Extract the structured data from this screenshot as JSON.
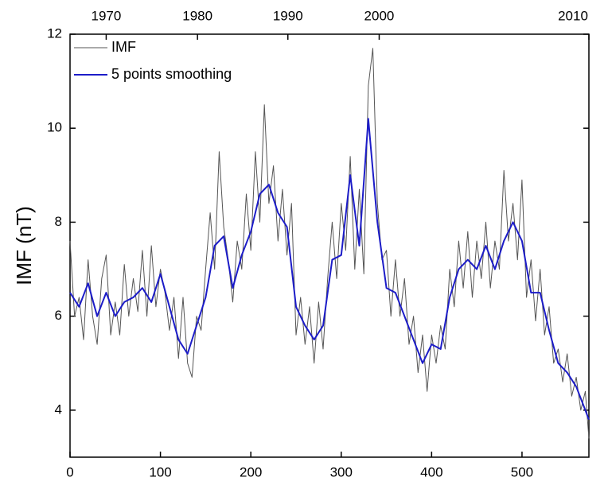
{
  "chart_data": {
    "type": "line",
    "y_label": "IMF (nT)",
    "xlim": [
      0,
      574
    ],
    "ylim": [
      3,
      12
    ],
    "xticks": [
      0,
      100,
      200,
      300,
      400,
      500
    ],
    "yticks": [
      4,
      6,
      8,
      10,
      12
    ],
    "x2ticks": [
      {
        "value": 40,
        "label": "1970"
      },
      {
        "value": 141,
        "label": "1980"
      },
      {
        "value": 241,
        "label": "1990"
      },
      {
        "value": 342,
        "label": "2000"
      },
      {
        "value": 574,
        "label": "2010"
      }
    ],
    "legend": "upper left",
    "series": [
      {
        "name": "IMF",
        "color": "#555555",
        "x": [
          0,
          5,
          10,
          15,
          20,
          25,
          30,
          35,
          40,
          45,
          50,
          55,
          60,
          65,
          70,
          75,
          80,
          85,
          90,
          95,
          100,
          105,
          110,
          115,
          120,
          125,
          130,
          135,
          140,
          145,
          150,
          155,
          160,
          165,
          170,
          175,
          180,
          185,
          190,
          195,
          200,
          205,
          210,
          215,
          220,
          225,
          230,
          235,
          240,
          245,
          250,
          255,
          260,
          265,
          270,
          275,
          280,
          285,
          290,
          295,
          300,
          305,
          310,
          315,
          320,
          325,
          330,
          335,
          340,
          345,
          350,
          355,
          360,
          365,
          370,
          375,
          380,
          385,
          390,
          395,
          400,
          405,
          410,
          415,
          420,
          425,
          430,
          435,
          440,
          445,
          450,
          455,
          460,
          465,
          470,
          475,
          480,
          485,
          490,
          495,
          500,
          505,
          510,
          515,
          520,
          525,
          530,
          535,
          540,
          545,
          550,
          555,
          560,
          565,
          570,
          574
        ],
        "values": [
          7.6,
          6.0,
          6.4,
          5.5,
          7.2,
          6.0,
          5.4,
          6.8,
          7.3,
          5.6,
          6.3,
          5.6,
          7.1,
          6.0,
          6.8,
          6.1,
          7.4,
          6.0,
          7.5,
          6.2,
          7.0,
          6.5,
          5.7,
          6.4,
          5.1,
          6.4,
          5.0,
          4.7,
          6.0,
          5.7,
          7.0,
          8.2,
          7.0,
          9.5,
          7.9,
          7.2,
          6.3,
          7.6,
          7.0,
          8.6,
          7.4,
          9.5,
          8.0,
          10.5,
          8.4,
          9.2,
          7.6,
          8.7,
          7.3,
          8.4,
          5.6,
          6.4,
          5.4,
          6.2,
          5.0,
          6.3,
          5.3,
          6.8,
          8.0,
          6.8,
          8.4,
          7.4,
          9.4,
          7.0,
          8.7,
          6.9,
          10.9,
          11.7,
          8.4,
          7.2,
          7.4,
          6.0,
          7.2,
          6.0,
          6.8,
          5.4,
          6.0,
          4.8,
          5.6,
          4.4,
          5.6,
          5.0,
          5.8,
          5.3,
          7.0,
          6.2,
          7.6,
          6.6,
          7.8,
          6.4,
          7.6,
          6.8,
          8.0,
          6.6,
          7.6,
          7.0,
          9.1,
          7.6,
          8.4,
          7.2,
          8.9,
          6.4,
          7.2,
          5.9,
          7.0,
          5.6,
          6.2,
          5.0,
          5.3,
          4.6,
          5.2,
          4.3,
          4.7,
          4.0,
          4.4,
          3.4
        ]
      },
      {
        "name": "5 points smoothing",
        "color": "#1c1cc8",
        "x": [
          0,
          10,
          20,
          30,
          40,
          50,
          60,
          70,
          80,
          90,
          100,
          110,
          120,
          130,
          140,
          150,
          160,
          170,
          180,
          190,
          200,
          210,
          220,
          230,
          240,
          250,
          260,
          270,
          280,
          290,
          300,
          310,
          320,
          330,
          340,
          350,
          360,
          370,
          380,
          390,
          400,
          410,
          420,
          430,
          440,
          450,
          460,
          470,
          480,
          490,
          500,
          510,
          520,
          530,
          540,
          550,
          560,
          570,
          574
        ],
        "values": [
          6.5,
          6.2,
          6.7,
          6.0,
          6.5,
          6.0,
          6.3,
          6.4,
          6.6,
          6.3,
          6.9,
          6.2,
          5.5,
          5.2,
          5.8,
          6.4,
          7.5,
          7.7,
          6.6,
          7.3,
          7.8,
          8.6,
          8.8,
          8.2,
          7.9,
          6.2,
          5.8,
          5.5,
          5.8,
          7.2,
          7.3,
          9.0,
          7.5,
          10.2,
          8.0,
          6.6,
          6.5,
          6.0,
          5.5,
          5.0,
          5.4,
          5.3,
          6.4,
          7.0,
          7.2,
          7.0,
          7.5,
          7.0,
          7.6,
          8.0,
          7.6,
          6.5,
          6.5,
          5.7,
          5.0,
          4.8,
          4.5,
          4.0,
          3.8
        ]
      }
    ]
  }
}
